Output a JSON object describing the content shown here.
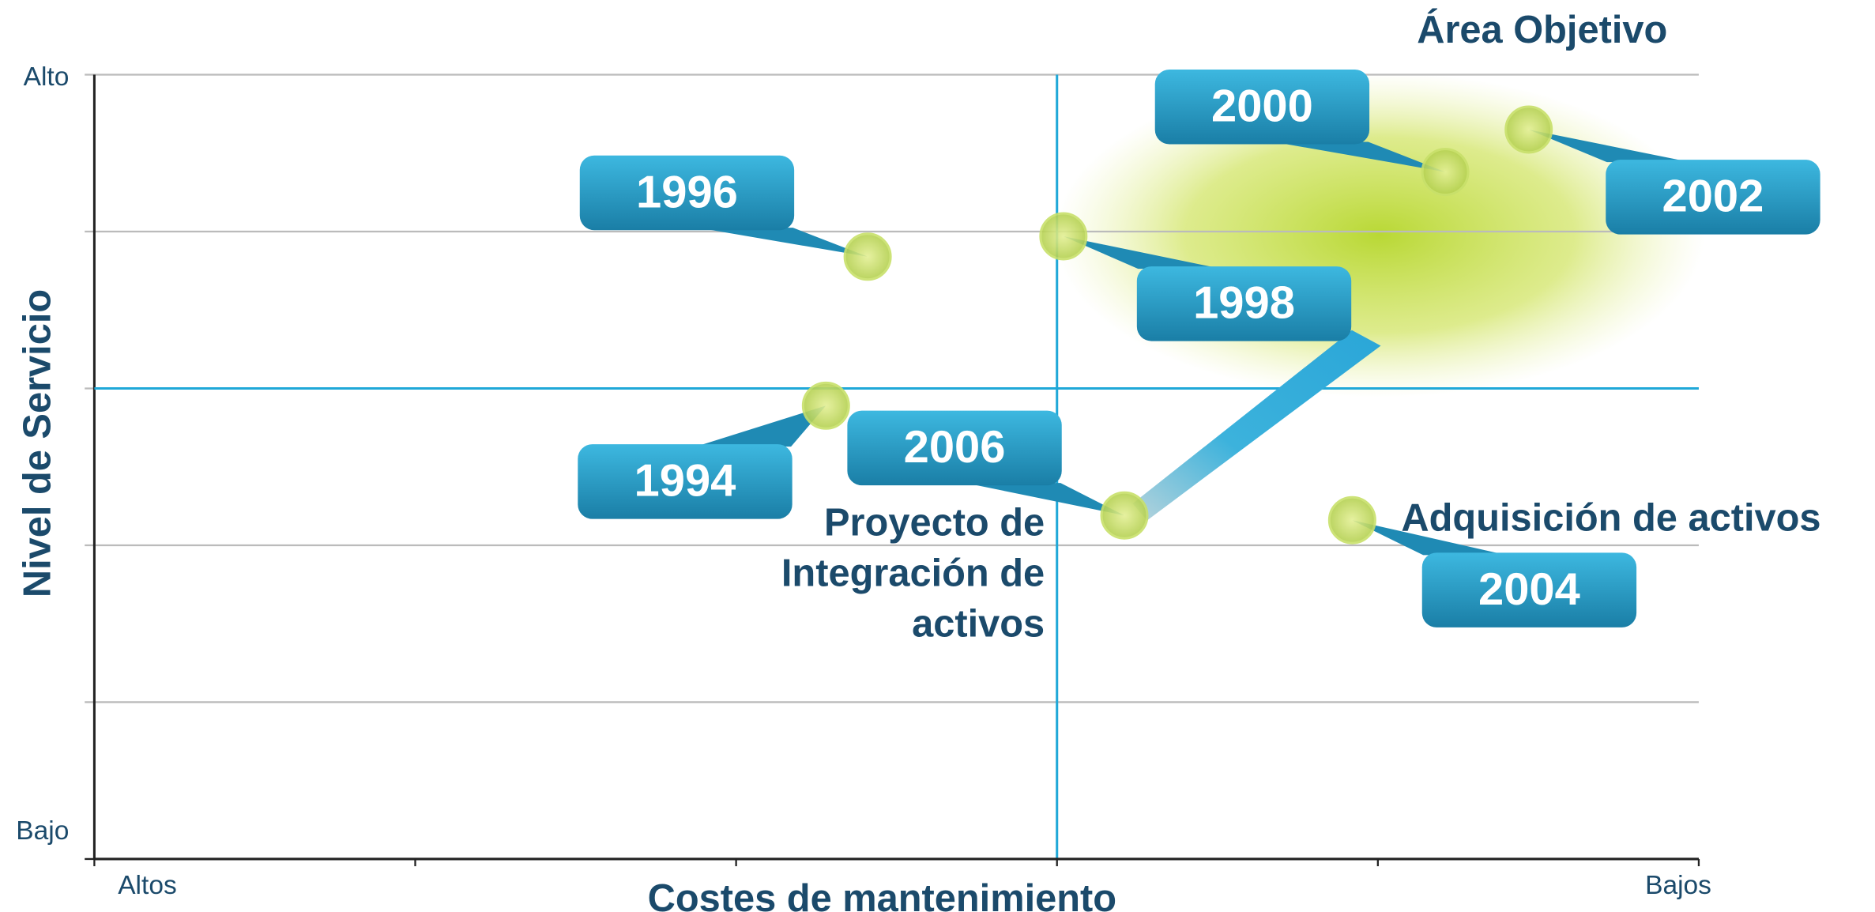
{
  "chart_data": {
    "type": "scatter",
    "x_label": "Costes de mantenimiento",
    "y_label": "Nivel de Servicio",
    "xlim": [
      0,
      5
    ],
    "ylim": [
      0,
      5
    ],
    "xticks": [
      {
        "value": 0,
        "label": "Altos"
      },
      {
        "value": 5,
        "label": "Bajos"
      }
    ],
    "yticks": [
      {
        "value": 5,
        "label": "Alto"
      },
      {
        "value": 0,
        "label": "Bajo"
      }
    ],
    "xminor": [
      1,
      2,
      3,
      4
    ],
    "ygrid": [
      1,
      2,
      3,
      4
    ],
    "xref": 3,
    "yref": 3,
    "labels": [
      "1994",
      "1996",
      "1998",
      "2000",
      "2002",
      "2004",
      "2006"
    ],
    "x": [
      2.28,
      2.41,
      3.02,
      4.21,
      4.47,
      3.92,
      3.21
    ],
    "values": [
      2.89,
      3.84,
      3.97,
      4.38,
      4.65,
      2.16,
      2.19
    ],
    "color": "#c8e06a",
    "annotations": {
      "target": "Área Objetivo",
      "acquisition": "Adquisición de activos",
      "project": [
        "Proyecto de",
        "Integración de",
        "activos"
      ]
    }
  }
}
